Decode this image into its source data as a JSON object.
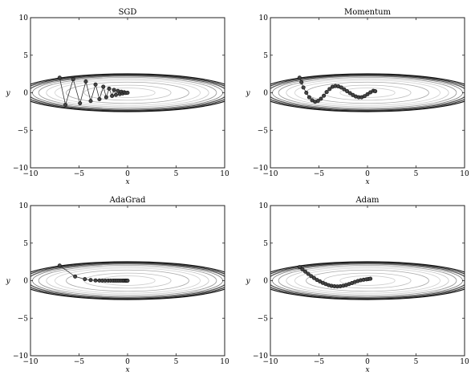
{
  "chart_data": [
    {
      "type": "line",
      "title": "SGD",
      "xlabel": "x",
      "ylabel": "y",
      "xlim": [
        -10,
        10
      ],
      "ylim": [
        -10,
        10
      ],
      "xticks": [
        "−10",
        "−5",
        "0",
        "5",
        "10"
      ],
      "yticks": [
        "−10",
        "−5",
        "0",
        "5",
        "10"
      ],
      "contours": "ellipses x^2/20 + y^2 centered at origin",
      "grid": false,
      "series": [
        {
          "x": [
            -7.0,
            -6.4,
            -5.6,
            -4.9,
            -4.3,
            -3.8,
            -3.3,
            -2.9,
            -2.5,
            -2.2,
            -1.9,
            -1.6,
            -1.4,
            -1.2,
            -1.0,
            -0.8,
            -0.65,
            -0.5,
            -0.35,
            -0.2,
            0.0
          ],
          "y": [
            2.0,
            -1.6,
            1.8,
            -1.4,
            1.5,
            -1.1,
            1.1,
            -0.85,
            0.8,
            -0.6,
            0.55,
            -0.42,
            0.38,
            -0.28,
            0.24,
            -0.17,
            0.14,
            -0.09,
            0.07,
            -0.03,
            0.0
          ]
        }
      ]
    },
    {
      "type": "line",
      "title": "Momentum",
      "xlabel": "x",
      "ylabel": "y",
      "xlim": [
        -10,
        10
      ],
      "ylim": [
        -10,
        10
      ],
      "xticks": [
        "−10",
        "−5",
        "0",
        "5",
        "10"
      ],
      "yticks": [
        "−10",
        "−5",
        "0",
        "5",
        "10"
      ],
      "contours": "ellipses x^2/20 + y^2 centered at origin",
      "grid": false,
      "series": [
        {
          "x": [
            -7.0,
            -6.8,
            -6.6,
            -6.3,
            -6.0,
            -5.7,
            -5.4,
            -5.1,
            -4.8,
            -4.5,
            -4.2,
            -3.9,
            -3.6,
            -3.3,
            -3.0,
            -2.7,
            -2.4,
            -2.1,
            -1.8,
            -1.5,
            -1.2,
            -0.9,
            -0.6,
            -0.3,
            0.0,
            0.3,
            0.6,
            0.8
          ],
          "y": [
            2.0,
            1.4,
            0.7,
            0.0,
            -0.6,
            -1.0,
            -1.2,
            -1.1,
            -0.8,
            -0.4,
            0.1,
            0.5,
            0.8,
            0.9,
            0.85,
            0.7,
            0.45,
            0.2,
            -0.05,
            -0.3,
            -0.5,
            -0.6,
            -0.6,
            -0.45,
            -0.2,
            0.05,
            0.25,
            0.2
          ]
        }
      ]
    },
    {
      "type": "line",
      "title": "AdaGrad",
      "xlabel": "x",
      "ylabel": "y",
      "xlim": [
        -10,
        10
      ],
      "ylim": [
        -10,
        10
      ],
      "xticks": [
        "−10",
        "−5",
        "0",
        "5",
        "10"
      ],
      "yticks": [
        "−10",
        "−5",
        "0",
        "5",
        "10"
      ],
      "contours": "ellipses x^2/20 + y^2 centered at origin",
      "grid": false,
      "series": [
        {
          "x": [
            -7.0,
            -5.4,
            -4.4,
            -3.8,
            -3.3,
            -2.9,
            -2.6,
            -2.3,
            -2.0,
            -1.75,
            -1.5,
            -1.3,
            -1.1,
            -0.9,
            -0.7,
            -0.5,
            -0.35,
            -0.2,
            -0.1,
            0.0
          ],
          "y": [
            2.0,
            0.55,
            0.2,
            0.08,
            0.03,
            0.01,
            0.0,
            0.0,
            0.0,
            0.0,
            0.0,
            0.0,
            0.0,
            0.0,
            0.0,
            0.0,
            0.0,
            0.0,
            0.0,
            0.0
          ]
        }
      ]
    },
    {
      "type": "line",
      "title": "Adam",
      "xlabel": "x",
      "ylabel": "y",
      "xlim": [
        -10,
        10
      ],
      "ylim": [
        -10,
        10
      ],
      "xticks": [
        "−10",
        "−5",
        "0",
        "5",
        "10"
      ],
      "yticks": [
        "−10",
        "−5",
        "0",
        "5",
        "10"
      ],
      "contours": "ellipses x^2/20 + y^2 centered at origin",
      "grid": false,
      "series": [
        {
          "x": [
            -7.0,
            -6.7,
            -6.4,
            -6.1,
            -5.8,
            -5.5,
            -5.2,
            -4.9,
            -4.6,
            -4.3,
            -4.0,
            -3.7,
            -3.4,
            -3.1,
            -2.8,
            -2.5,
            -2.2,
            -1.9,
            -1.6,
            -1.3,
            -1.0,
            -0.7,
            -0.4,
            -0.1,
            0.1,
            0.3
          ],
          "y": [
            1.8,
            1.5,
            1.2,
            0.9,
            0.6,
            0.35,
            0.1,
            -0.1,
            -0.3,
            -0.45,
            -0.6,
            -0.7,
            -0.75,
            -0.78,
            -0.75,
            -0.68,
            -0.58,
            -0.45,
            -0.32,
            -0.18,
            -0.05,
            0.05,
            0.12,
            0.18,
            0.22,
            0.25
          ]
        }
      ]
    }
  ]
}
